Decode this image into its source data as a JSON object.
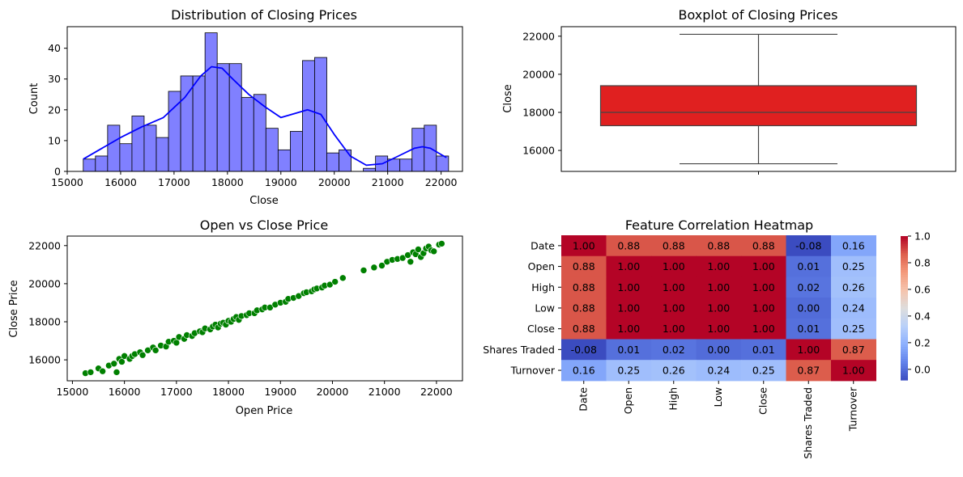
{
  "chart_data": [
    {
      "type": "bar",
      "title": "Distribution of Closing Prices",
      "xlabel": "Close",
      "ylabel": "Count",
      "xlim": [
        15000,
        22400
      ],
      "ylim": [
        0,
        47
      ],
      "xticks": [
        15000,
        16000,
        17000,
        18000,
        19000,
        20000,
        21000,
        22000
      ],
      "yticks": [
        0,
        10,
        20,
        30,
        40
      ],
      "bin_start": 15300,
      "bin_width": 228,
      "values": [
        4,
        5,
        15,
        9,
        18,
        15,
        11,
        26,
        31,
        31,
        45,
        35,
        35,
        24,
        25,
        14,
        7,
        13,
        36,
        37,
        6,
        7,
        0,
        1,
        5,
        4,
        4,
        14,
        15,
        5
      ],
      "kde": {
        "x": [
          15300,
          15600,
          16000,
          16400,
          16800,
          17200,
          17500,
          17700,
          17900,
          18100,
          18400,
          18700,
          19000,
          19300,
          19500,
          19750,
          20000,
          20300,
          20600,
          20900,
          21200,
          21500,
          21650,
          21800,
          22000,
          22100
        ],
        "y": [
          4,
          7,
          11,
          14.5,
          17.5,
          24,
          31,
          34,
          33.5,
          30,
          25,
          21,
          17.5,
          19,
          20,
          18.5,
          12,
          5,
          2,
          2.5,
          5,
          7.5,
          8,
          7.5,
          5.5,
          4.5
        ]
      },
      "colors": {
        "bar": "#8080ff",
        "edge": "#000000",
        "kde": "#0000ff"
      }
    },
    {
      "type": "box",
      "title": "Boxplot of Closing Prices",
      "ylabel": "Close",
      "ylim": [
        14900,
        22500
      ],
      "yticks": [
        16000,
        18000,
        20000,
        22000
      ],
      "stats": {
        "min": 15300,
        "q1": 17300,
        "median": 18000,
        "q3": 19400,
        "max": 22100
      },
      "colors": {
        "box": "#e02020",
        "line": "#444444"
      }
    },
    {
      "type": "scatter",
      "title": "Open vs Close Price",
      "xlabel": "Open Price",
      "ylabel": "Close Price",
      "xlim": [
        14900,
        22500
      ],
      "ylim": [
        14900,
        22500
      ],
      "xticks": [
        15000,
        16000,
        17000,
        18000,
        19000,
        20000,
        21000,
        22000
      ],
      "yticks": [
        16000,
        18000,
        20000,
        22000
      ],
      "points": [
        [
          15250,
          15300
        ],
        [
          15350,
          15350
        ],
        [
          15500,
          15550
        ],
        [
          15580,
          15400
        ],
        [
          15700,
          15700
        ],
        [
          15800,
          15800
        ],
        [
          15850,
          15350
        ],
        [
          15900,
          16050
        ],
        [
          15950,
          15900
        ],
        [
          16000,
          16200
        ],
        [
          16100,
          16050
        ],
        [
          16150,
          16200
        ],
        [
          16200,
          16300
        ],
        [
          16300,
          16400
        ],
        [
          16350,
          16250
        ],
        [
          16450,
          16500
        ],
        [
          16550,
          16650
        ],
        [
          16600,
          16500
        ],
        [
          16700,
          16750
        ],
        [
          16800,
          16700
        ],
        [
          16850,
          16950
        ],
        [
          16950,
          17000
        ],
        [
          17000,
          16900
        ],
        [
          17050,
          17200
        ],
        [
          17150,
          17100
        ],
        [
          17200,
          17300
        ],
        [
          17300,
          17250
        ],
        [
          17350,
          17400
        ],
        [
          17450,
          17500
        ],
        [
          17500,
          17450
        ],
        [
          17550,
          17650
        ],
        [
          17650,
          17600
        ],
        [
          17700,
          17750
        ],
        [
          17750,
          17850
        ],
        [
          17800,
          17700
        ],
        [
          17850,
          17900
        ],
        [
          17900,
          17950
        ],
        [
          17950,
          17850
        ],
        [
          18000,
          18050
        ],
        [
          18050,
          18000
        ],
        [
          18100,
          18150
        ],
        [
          18150,
          18250
        ],
        [
          18200,
          18100
        ],
        [
          18250,
          18300
        ],
        [
          18350,
          18350
        ],
        [
          18400,
          18450
        ],
        [
          18500,
          18450
        ],
        [
          18550,
          18600
        ],
        [
          18650,
          18650
        ],
        [
          18700,
          18750
        ],
        [
          18800,
          18750
        ],
        [
          18900,
          18900
        ],
        [
          19000,
          19000
        ],
        [
          19100,
          19050
        ],
        [
          19150,
          19200
        ],
        [
          19250,
          19250
        ],
        [
          19350,
          19350
        ],
        [
          19450,
          19500
        ],
        [
          19500,
          19550
        ],
        [
          19600,
          19600
        ],
        [
          19650,
          19700
        ],
        [
          19700,
          19750
        ],
        [
          19800,
          19800
        ],
        [
          19850,
          19900
        ],
        [
          19950,
          19950
        ],
        [
          20050,
          20100
        ],
        [
          20200,
          20300
        ],
        [
          20600,
          20700
        ],
        [
          20800,
          20850
        ],
        [
          20950,
          20950
        ],
        [
          21050,
          21150
        ],
        [
          21150,
          21250
        ],
        [
          21250,
          21300
        ],
        [
          21350,
          21350
        ],
        [
          21450,
          21500
        ],
        [
          21500,
          21150
        ],
        [
          21550,
          21650
        ],
        [
          21600,
          21550
        ],
        [
          21650,
          21800
        ],
        [
          21700,
          21400
        ],
        [
          21750,
          21600
        ],
        [
          21800,
          21850
        ],
        [
          21850,
          21950
        ],
        [
          21900,
          21750
        ],
        [
          21950,
          21700
        ],
        [
          22050,
          22050
        ],
        [
          22100,
          22100
        ]
      ],
      "colors": {
        "point": "#008000",
        "edge": "#ffffff"
      }
    },
    {
      "type": "heatmap",
      "title": "Feature Correlation Heatmap",
      "labels": [
        "Date",
        "Open",
        "High",
        "Low",
        "Close",
        "Shares Traded",
        "Turnover"
      ],
      "matrix": [
        [
          1.0,
          0.88,
          0.88,
          0.88,
          0.88,
          -0.08,
          0.16
        ],
        [
          0.88,
          1.0,
          1.0,
          1.0,
          1.0,
          0.01,
          0.25
        ],
        [
          0.88,
          1.0,
          1.0,
          1.0,
          1.0,
          0.02,
          0.26
        ],
        [
          0.88,
          1.0,
          1.0,
          1.0,
          1.0,
          -0.0,
          0.24
        ],
        [
          0.88,
          1.0,
          1.0,
          1.0,
          1.0,
          0.01,
          0.25
        ],
        [
          -0.08,
          0.01,
          0.02,
          -0.0,
          0.01,
          1.0,
          0.87
        ],
        [
          0.16,
          0.25,
          0.26,
          0.24,
          0.25,
          0.87,
          1.0
        ]
      ],
      "vmin": -0.08,
      "vmax": 1.0,
      "colorbar_ticks": [
        -0.0,
        0.2,
        0.4,
        0.6,
        0.8,
        1.0
      ],
      "colormap": "coolwarm"
    }
  ]
}
